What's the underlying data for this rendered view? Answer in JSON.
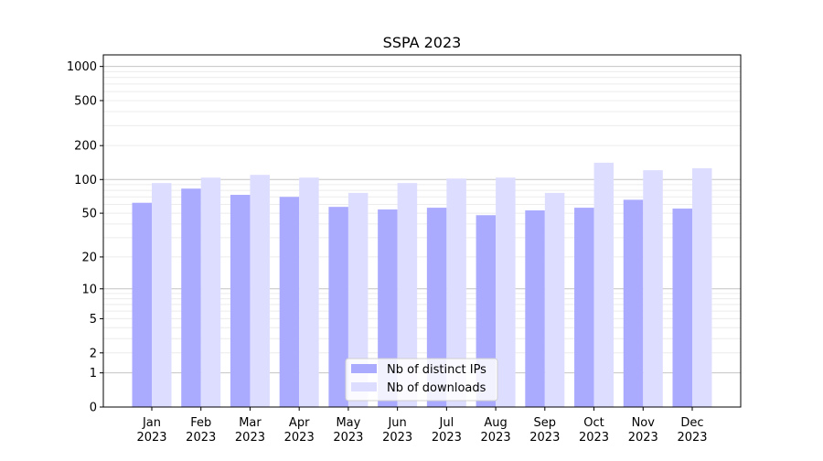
{
  "chart_data": {
    "type": "bar",
    "title": "SSPA 2023",
    "xlabel": "",
    "ylabel": "",
    "yscale": "log10(y+1)",
    "ylim": [
      0,
      1265
    ],
    "yticks": [
      0,
      1,
      2,
      5,
      10,
      20,
      50,
      100,
      200,
      500,
      1000
    ],
    "grid": true,
    "legend_position": "lower center",
    "categories": [
      "Jan\n2023",
      "Feb\n2023",
      "Mar\n2023",
      "Apr\n2023",
      "May\n2023",
      "Jun\n2023",
      "Jul\n2023",
      "Aug\n2023",
      "Sep\n2023",
      "Oct\n2023",
      "Nov\n2023",
      "Dec\n2023"
    ],
    "series": [
      {
        "name": "Nb of distinct IPs",
        "color": "#aaaaff",
        "values": [
          62,
          83,
          73,
          70,
          57,
          54,
          56,
          48,
          53,
          56,
          66,
          55
        ]
      },
      {
        "name": "Nb of downloads",
        "color": "#ddddff",
        "values": [
          93,
          104,
          110,
          104,
          76,
          93,
          102,
          104,
          76,
          141,
          121,
          126
        ]
      }
    ]
  }
}
